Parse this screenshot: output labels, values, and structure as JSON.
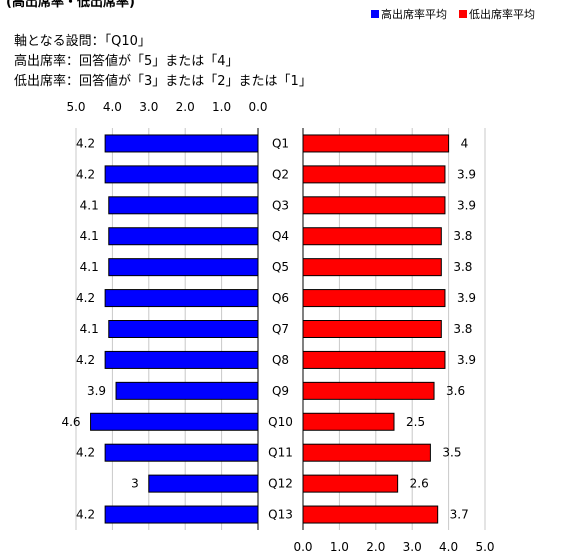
{
  "title": "(高出席率・低出席率)",
  "legend": {
    "high_label": "高出席率平均",
    "low_label": "低出席率平均",
    "high_color": "#0000ff",
    "low_color": "#ff0000"
  },
  "info": {
    "axis_question": "軸となる設問：「Q10」",
    "high_definition": "高出席率：回答値が「5」または「4」",
    "low_definition": "低出席率：回答値が「3」または「2」または「1」"
  },
  "chart_data": {
    "type": "bar",
    "layout": "butterfly",
    "categories": [
      "Q1",
      "Q2",
      "Q3",
      "Q4",
      "Q5",
      "Q6",
      "Q7",
      "Q8",
      "Q9",
      "Q10",
      "Q11",
      "Q12",
      "Q13"
    ],
    "series": [
      {
        "name": "高出席率平均",
        "color": "#0000ff",
        "side": "left",
        "values": [
          4.2,
          4.2,
          4.1,
          4.1,
          4.1,
          4.2,
          4.1,
          4.2,
          3.9,
          4.6,
          4.2,
          3,
          4.2
        ]
      },
      {
        "name": "低出席率平均",
        "color": "#ff0000",
        "side": "right",
        "values": [
          4,
          3.9,
          3.9,
          3.8,
          3.8,
          3.9,
          3.8,
          3.9,
          3.6,
          2.5,
          3.5,
          2.6,
          3.7
        ]
      }
    ],
    "left_ticks": [
      "5.0",
      "4.0",
      "3.0",
      "2.0",
      "1.0",
      "0.0"
    ],
    "right_ticks": [
      "0.0",
      "1.0",
      "2.0",
      "3.0",
      "4.0",
      "5.0"
    ],
    "xlim": [
      0,
      5
    ],
    "grid": true
  }
}
